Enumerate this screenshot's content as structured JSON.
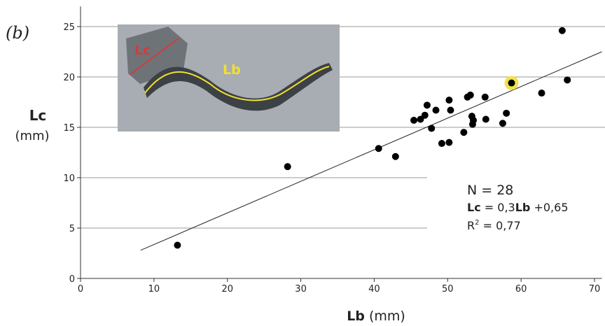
{
  "chart_data": {
    "type": "scatter",
    "panel_label": "(b)",
    "x_label": [
      "Lb",
      " (mm)"
    ],
    "y_label": [
      "Lc",
      "(mm)"
    ],
    "x": [
      13.2,
      28.2,
      40.6,
      42.9,
      45.4,
      46.3,
      46.9,
      47.2,
      47.8,
      48.4,
      49.2,
      50.2,
      50.4,
      50.2,
      52.2,
      52.7,
      53.1,
      53.3,
      53.4,
      53.5,
      55.1,
      55.2,
      57.5,
      58.0,
      58.7,
      62.8,
      65.6,
      66.3
    ],
    "y": [
      3.3,
      11.1,
      12.9,
      12.1,
      15.7,
      15.8,
      16.2,
      17.2,
      14.9,
      16.7,
      13.4,
      17.7,
      16.7,
      13.5,
      14.5,
      18.0,
      18.2,
      16.1,
      15.3,
      15.7,
      18.0,
      15.8,
      15.4,
      16.4,
      19.4,
      18.4,
      24.6,
      19.7
    ],
    "color": "#000000",
    "highlight_index": 24,
    "highlight_color": "#f2e24a",
    "fit_line": {
      "x": [
        8.2,
        71
      ],
      "y": [
        2.8,
        22.5
      ]
    },
    "xlim": [
      0,
      71
    ],
    "ylim": [
      0,
      27
    ],
    "xticks": [
      0,
      10,
      20,
      30,
      40,
      50,
      60,
      70
    ],
    "yticks": [
      0,
      5,
      10,
      15,
      20,
      25
    ],
    "grid": true,
    "annotation": {
      "n": "N = 28",
      "equation": [
        "Lc",
        " = 0,3",
        "Lb",
        " +0,65"
      ],
      "r2": [
        "R",
        "2",
        " = 0,77"
      ]
    },
    "inset_labels": {
      "lc": "Lc",
      "lb": "Lb"
    }
  }
}
